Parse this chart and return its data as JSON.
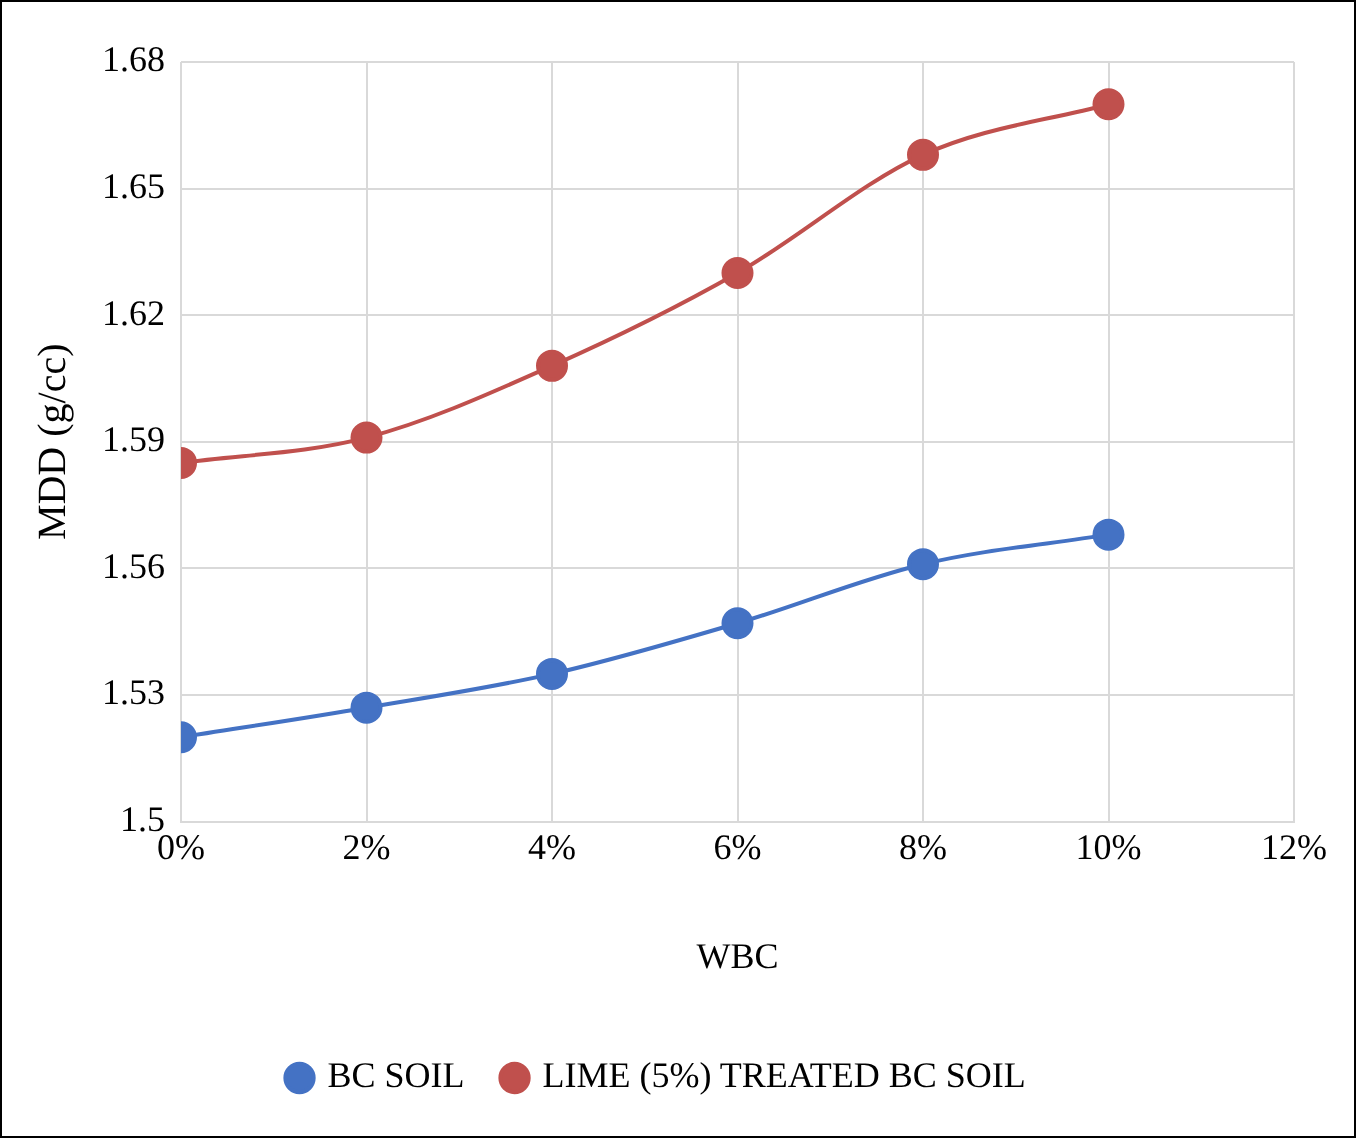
{
  "chart_data": {
    "type": "line",
    "xlabel": "WBC",
    "ylabel": "MDD (g/cc)",
    "x": [
      0,
      2,
      4,
      6,
      8,
      10
    ],
    "series": [
      {
        "name": "BC SOIL",
        "color": "#4472c4",
        "values": [
          1.52,
          1.527,
          1.535,
          1.547,
          1.561,
          1.568
        ]
      },
      {
        "name": "LIME (5%) TREATED BC SOIL",
        "color": "#c0504d",
        "values": [
          1.585,
          1.591,
          1.608,
          1.63,
          1.658,
          1.67
        ]
      }
    ],
    "xlim": [
      0,
      12
    ],
    "xticks": [
      {
        "value": 0,
        "label": "0%"
      },
      {
        "value": 2,
        "label": "2%"
      },
      {
        "value": 4,
        "label": "4%"
      },
      {
        "value": 6,
        "label": "6%"
      },
      {
        "value": 8,
        "label": "8%"
      },
      {
        "value": 10,
        "label": "10%"
      },
      {
        "value": 12,
        "label": "12%"
      }
    ],
    "ylim": [
      1.5,
      1.68
    ],
    "yticks": [
      1.5,
      1.53,
      1.56,
      1.59,
      1.62,
      1.65,
      1.68
    ],
    "grid": true,
    "legend": "bottom",
    "marker": "circle",
    "line_style": "solid"
  }
}
